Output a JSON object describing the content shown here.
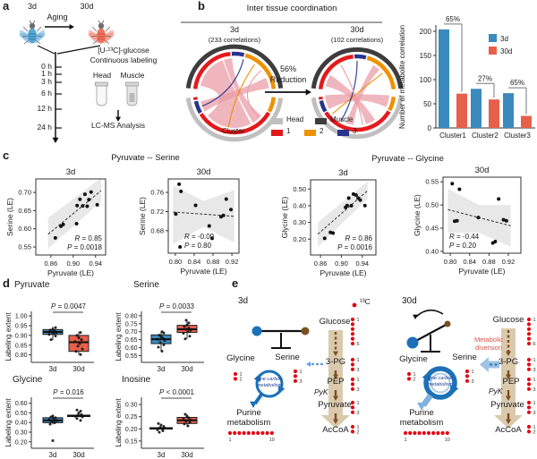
{
  "panel_labels": {
    "a": "a",
    "b": "b",
    "c": "c",
    "d": "d",
    "e": "e"
  },
  "colors": {
    "blue": "#3b8abd",
    "red": "#e7604b",
    "chord_red": "#e31a1c",
    "chord_orange": "#ef9100",
    "chord_navy": "#27348b",
    "head_gray": "#c0c0c0",
    "muscle_dark": "#3d3d3d",
    "ribbon_pink": "#ea9aa5",
    "tan": "#d9c6aa",
    "brown": "#7b4f21",
    "onecarbon_blue": "#1d71b8",
    "lightblue": "#9dc3e6",
    "dot_red": "#e30613",
    "diversion_red": "#d9544a",
    "fly_blue": "#58a8d4",
    "fly_blue_dark": "#2f7ca8",
    "fly_red": "#ef7561",
    "fly_red_dark": "#d04a38"
  },
  "panel_a": {
    "young_label": "3d",
    "aging_label": "Aging",
    "old_label": "30d",
    "timepoints": [
      "0 h",
      "1 h",
      "3 h",
      "6 h",
      "12 h",
      "24 h"
    ],
    "labeling_line1": "[U-¹³C]-glucose",
    "labeling_line2": "Continuous labeling",
    "tissue_head": "Head",
    "tissue_muscle": "Muscle",
    "analysis": "LC-MS Analysis"
  },
  "panel_b": {
    "title": "Inter tissue coordination",
    "chord_3d_title": "3d",
    "chord_3d_sub": "(233 correlations)",
    "chord_30d_title": "30d",
    "chord_30d_sub": "(102 correlations)",
    "reduction_line1": "56%",
    "reduction_line2": "Reduction",
    "legend_head": "Head",
    "legend_muscle": "Muscle",
    "legend_cluster": "Cluster",
    "legend_c1": "1",
    "legend_c2": "2",
    "legend_c3": "3"
  },
  "panel_c": {
    "title_serine": "Pyruvate -- Serine",
    "title_glycine": "Pyruvate -- Glycine"
  },
  "panel_e": {
    "age_young": "3d",
    "age_old": "30d",
    "c13": "¹³C",
    "glycine": "Glycine",
    "serine": "Serine",
    "one_carbon_1": "One carbon",
    "one_carbon_2": "metabolism",
    "purine_1": "Purine",
    "purine_2": "metabolism",
    "diversion_1": "Metabolic",
    "diversion_2": "diversion",
    "pathway": {
      "glucose": "Glucose",
      "pg": "3-PG",
      "pep": "PEP",
      "pyk": "PyK",
      "pyruvate": "Pyruvate",
      "accoa": "AcCoA"
    },
    "dots": {
      "glucose": {
        "n": 6,
        "labels": [
          "1",
          "6"
        ]
      },
      "pg": {
        "n": 3,
        "labels": [
          "1",
          "3"
        ]
      },
      "pep": {
        "n": 3,
        "labels": [
          "1",
          "3"
        ]
      },
      "pyruvate": {
        "n": 3,
        "labels": [
          "1",
          "3"
        ]
      },
      "accoa": {
        "n": 2,
        "labels": [
          "1",
          "2"
        ]
      },
      "serine": {
        "n": 3,
        "labels": [
          "1",
          "3"
        ]
      },
      "glycine": {
        "n": 2,
        "labels": [
          "1",
          "2"
        ]
      },
      "purine": {
        "n": 10,
        "labels": [
          "1",
          "10"
        ]
      }
    }
  },
  "chart_data": [
    {
      "id": "correlations",
      "type": "bar",
      "ylabel": "Number of metabolite correlation",
      "yticks": [
        0,
        50,
        100,
        150,
        200
      ],
      "ytick_labels": [
        "0",
        "50",
        "100",
        "150",
        "200"
      ],
      "ylim": [
        0,
        220
      ],
      "categories": [
        "Cluster1",
        "Cluster2",
        "Cluster3"
      ],
      "series": [
        {
          "name": "3d",
          "color": "#3b8abd",
          "values": [
            204,
            81,
            72
          ]
        },
        {
          "name": "30d",
          "color": "#e7604b",
          "values": [
            71,
            59,
            25
          ]
        }
      ],
      "annotations": [
        "65%",
        "27%",
        "65%"
      ],
      "legend_position": "top-right"
    },
    {
      "id": "serine_3d",
      "type": "scatter",
      "title": "3d",
      "xlabel": "Pyruvate (LE)",
      "ylabel": "Serine (LE)",
      "xdomain": [
        0.833,
        0.958
      ],
      "xticks": [
        0.86,
        0.9,
        0.94
      ],
      "xtick_labels": [
        "0.86",
        "0.90",
        "0.94"
      ],
      "ydomain": [
        0.528,
        0.737
      ],
      "yticks": [
        0.55,
        0.6,
        0.65,
        0.7
      ],
      "ytick_labels": [
        "0.55",
        "0.60",
        "0.65",
        "0.70"
      ],
      "r_label": "R = 0.85",
      "p_label": "P = 0.0018",
      "ann_pos": "br",
      "trend": [
        [
          0.855,
          0.585
        ],
        [
          0.95,
          0.705
        ]
      ],
      "band": [
        [
          0.855,
          0.63
        ],
        [
          0.95,
          0.74
        ],
        [
          0.95,
          0.675
        ],
        [
          0.855,
          0.545
        ]
      ],
      "points": [
        [
          0.868,
          0.575
        ],
        [
          0.878,
          0.607
        ],
        [
          0.882,
          0.612
        ],
        [
          0.906,
          0.614
        ],
        [
          0.907,
          0.664
        ],
        [
          0.912,
          0.681
        ],
        [
          0.917,
          0.663
        ],
        [
          0.921,
          0.695
        ],
        [
          0.925,
          0.662
        ],
        [
          0.928,
          0.68
        ],
        [
          0.932,
          0.701
        ],
        [
          0.943,
          0.666
        ]
      ]
    },
    {
      "id": "serine_30d",
      "type": "scatter",
      "title": "30d",
      "xlabel": "Pyruvate (LE)",
      "ylabel": "Serine (LE)",
      "xdomain": [
        0.785,
        0.935
      ],
      "xticks": [
        0.8,
        0.84,
        0.88,
        0.92
      ],
      "xtick_labels": [
        "0.80",
        "0.84",
        "0.88",
        "0.92"
      ],
      "ydomain": [
        0.633,
        0.788
      ],
      "yticks": [
        0.68,
        0.72,
        0.76
      ],
      "ytick_labels": [
        "0.68",
        "0.72",
        "0.76"
      ],
      "r_label": "R = -0.09",
      "p_label": "P = 0.80",
      "ann_pos": "bl",
      "trend": [
        [
          0.795,
          0.719
        ],
        [
          0.925,
          0.71
        ]
      ],
      "band": [
        [
          0.795,
          0.775
        ],
        [
          0.86,
          0.742
        ],
        [
          0.925,
          0.765
        ],
        [
          0.925,
          0.655
        ],
        [
          0.86,
          0.688
        ],
        [
          0.795,
          0.652
        ]
      ],
      "points": [
        [
          0.801,
          0.715
        ],
        [
          0.808,
          0.777
        ],
        [
          0.812,
          0.762
        ],
        [
          0.81,
          0.646
        ],
        [
          0.843,
          0.733
        ],
        [
          0.872,
          0.69
        ],
        [
          0.878,
          0.664
        ],
        [
          0.897,
          0.709
        ],
        [
          0.902,
          0.712
        ],
        [
          0.908,
          0.746
        ],
        [
          0.918,
          0.724
        ]
      ]
    },
    {
      "id": "glycine_3d",
      "type": "scatter",
      "title": "3d",
      "xlabel": "Pyruvate (LE)",
      "ylabel": "Glycine (LE)",
      "xdomain": [
        0.841,
        0.966
      ],
      "xticks": [
        0.86,
        0.9,
        0.94
      ],
      "xtick_labels": [
        "0.86",
        "0.90",
        "0.94"
      ],
      "ydomain": [
        0.105,
        0.555
      ],
      "yticks": [
        0.2,
        0.3,
        0.4,
        0.5
      ],
      "ytick_labels": [
        "0.20",
        "0.30",
        "0.40",
        "0.50"
      ],
      "r_label": "R = 0.86",
      "p_label": "P = 0.0016",
      "ann_pos": "br",
      "trend": [
        [
          0.855,
          0.23
        ],
        [
          0.95,
          0.49
        ]
      ],
      "band": [
        [
          0.855,
          0.3
        ],
        [
          0.95,
          0.545
        ],
        [
          0.95,
          0.44
        ],
        [
          0.855,
          0.155
        ]
      ],
      "points": [
        [
          0.868,
          0.205
        ],
        [
          0.879,
          0.24
        ],
        [
          0.884,
          0.236
        ],
        [
          0.908,
          0.39
        ],
        [
          0.911,
          0.401
        ],
        [
          0.914,
          0.446
        ],
        [
          0.919,
          0.4
        ],
        [
          0.923,
          0.47
        ],
        [
          0.928,
          0.464
        ],
        [
          0.932,
          0.446
        ],
        [
          0.936,
          0.434
        ],
        [
          0.945,
          0.401
        ]
      ]
    },
    {
      "id": "glycine_30d",
      "type": "scatter",
      "title": "30d",
      "xlabel": "Pyruvate (LE)",
      "ylabel": "Glycine (LE)",
      "xdomain": [
        0.785,
        0.946
      ],
      "xticks": [
        0.8,
        0.84,
        0.88,
        0.92
      ],
      "xtick_labels": [
        "0.80",
        "0.84",
        "0.88",
        "0.92"
      ],
      "ydomain": [
        0.396,
        0.56
      ],
      "yticks": [
        0.4,
        0.45,
        0.5,
        0.55
      ],
      "ytick_labels": [
        "0.40",
        "0.45",
        "0.50",
        "0.55"
      ],
      "r_label": "R = -0.44",
      "p_label": "P = 0.20",
      "ann_pos": "bl",
      "trend": [
        [
          0.795,
          0.49
        ],
        [
          0.925,
          0.455
        ]
      ],
      "band": [
        [
          0.795,
          0.535
        ],
        [
          0.86,
          0.5
        ],
        [
          0.925,
          0.5
        ],
        [
          0.925,
          0.41
        ],
        [
          0.86,
          0.44
        ],
        [
          0.795,
          0.44
        ]
      ],
      "points": [
        [
          0.804,
          0.546
        ],
        [
          0.809,
          0.465
        ],
        [
          0.814,
          0.466
        ],
        [
          0.819,
          0.534
        ],
        [
          0.858,
          0.473
        ],
        [
          0.888,
          0.418
        ],
        [
          0.893,
          0.421
        ],
        [
          0.9,
          0.513
        ],
        [
          0.91,
          0.468
        ],
        [
          0.916,
          0.466
        ]
      ]
    },
    {
      "id": "pyruvate_box",
      "type": "box",
      "title": "Pyruvate",
      "p_label": "P = 0.0047",
      "ylabel": "Labeling extent",
      "categories": [
        "3d",
        "30d"
      ],
      "ydomain": [
        0.78,
        1.005
      ],
      "yticks": [
        0.8,
        0.85,
        0.9,
        0.95,
        1.0
      ],
      "ytick_labels": [
        "0.80",
        "0.85",
        "0.90",
        "0.95",
        "1.00"
      ],
      "groups": [
        {
          "name": "3d",
          "color": "#3b8abd",
          "box": {
            "lo": 0.875,
            "q1": 0.905,
            "med": 0.918,
            "q3": 0.93,
            "hi": 0.945
          },
          "points": [
            [
              -2,
              0.878
            ],
            [
              3,
              0.897
            ],
            [
              -4,
              0.905
            ],
            [
              1,
              0.91
            ],
            [
              4,
              0.915
            ],
            [
              -1,
              0.918
            ],
            [
              2,
              0.922
            ],
            [
              -3,
              0.927
            ],
            [
              0,
              0.932
            ],
            [
              3,
              0.94
            ]
          ]
        },
        {
          "name": "30d",
          "color": "#e7604b",
          "box": {
            "lo": 0.8,
            "q1": 0.818,
            "med": 0.865,
            "q3": 0.9,
            "hi": 0.92
          },
          "points": [
            [
              2,
              0.802
            ],
            [
              -3,
              0.818
            ],
            [
              4,
              0.83
            ],
            [
              -1,
              0.845
            ],
            [
              1,
              0.858
            ],
            [
              -4,
              0.868
            ],
            [
              3,
              0.878
            ],
            [
              0,
              0.888
            ],
            [
              -2,
              0.9
            ],
            [
              2,
              0.915
            ]
          ]
        }
      ]
    },
    {
      "id": "serine_box",
      "type": "box",
      "title": "Serine",
      "p_label": "P = 0.0033",
      "ylabel": "Labeling extent",
      "categories": [
        "3d",
        "30d"
      ],
      "ydomain": [
        0.53,
        0.805
      ],
      "yticks": [
        0.55,
        0.6,
        0.65,
        0.7,
        0.75,
        0.8
      ],
      "ytick_labels": [
        "0.55",
        "0.60",
        "0.65",
        "0.70",
        "0.75",
        "0.80"
      ],
      "groups": [
        {
          "name": "3d",
          "color": "#3b8abd",
          "box": {
            "lo": 0.575,
            "q1": 0.625,
            "med": 0.653,
            "q3": 0.68,
            "hi": 0.7
          },
          "points": [
            [
              1,
              0.578
            ],
            [
              -3,
              0.603
            ],
            [
              3,
              0.618
            ],
            [
              -1,
              0.632
            ],
            [
              4,
              0.645
            ],
            [
              -4,
              0.652
            ],
            [
              2,
              0.66
            ],
            [
              0,
              0.668
            ],
            [
              -2,
              0.678
            ],
            [
              3,
              0.692
            ],
            [
              1,
              0.7
            ]
          ]
        },
        {
          "name": "30d",
          "color": "#e7604b",
          "box": {
            "lo": 0.655,
            "q1": 0.695,
            "med": 0.715,
            "q3": 0.74,
            "hi": 0.775
          },
          "points": [
            [
              -2,
              0.655
            ],
            [
              3,
              0.672
            ],
            [
              -4,
              0.69
            ],
            [
              1,
              0.7
            ],
            [
              4,
              0.708
            ],
            [
              -1,
              0.715
            ],
            [
              2,
              0.722
            ],
            [
              -3,
              0.732
            ],
            [
              0,
              0.742
            ],
            [
              2,
              0.755
            ],
            [
              -1,
              0.772
            ]
          ]
        }
      ]
    },
    {
      "id": "glycine_box",
      "type": "box",
      "title": "Glycine",
      "p_label": "P = 0.016",
      "ylabel": "Labeling extent",
      "categories": [
        "3d",
        "30d"
      ],
      "ydomain": [
        0.17,
        0.625
      ],
      "yticks": [
        0.2,
        0.3,
        0.4,
        0.5,
        0.6
      ],
      "ytick_labels": [
        "0.20",
        "0.30",
        "0.40",
        "0.50",
        "0.60"
      ],
      "groups": [
        {
          "name": "3d",
          "color": "#3b8abd",
          "box": {
            "lo": 0.38,
            "q1": 0.398,
            "med": 0.422,
            "q3": 0.45,
            "hi": 0.47
          },
          "points": [
            [
              0,
              0.212
            ],
            [
              -3,
              0.382
            ],
            [
              2,
              0.398
            ],
            [
              -1,
              0.41
            ],
            [
              4,
              0.42
            ],
            [
              -4,
              0.43
            ],
            [
              1,
              0.44
            ],
            [
              3,
              0.45
            ],
            [
              -2,
              0.458
            ],
            [
              0,
              0.468
            ]
          ]
        },
        {
          "name": "30d",
          "color": "#e7604b",
          "box": null,
          "median": 0.47,
          "points": [
            [
              2,
              0.422
            ],
            [
              -2,
              0.442
            ],
            [
              4,
              0.458
            ],
            [
              -4,
              0.465
            ],
            [
              1,
              0.47
            ],
            [
              -1,
              0.475
            ],
            [
              3,
              0.482
            ],
            [
              0,
              0.5
            ],
            [
              2,
              0.518
            ],
            [
              -2,
              0.53
            ]
          ]
        }
      ]
    },
    {
      "id": "inosine_box",
      "type": "box",
      "title": "Inosine",
      "p_label": "P < 0.0001",
      "ylabel": "Labeling extent",
      "categories": [
        "3d",
        "30d"
      ],
      "ydomain": [
        0.135,
        0.315
      ],
      "yticks": [
        0.15,
        0.2,
        0.25,
        0.3
      ],
      "ytick_labels": [
        "0.15",
        "0.20",
        "0.25",
        "0.30"
      ],
      "groups": [
        {
          "name": "3d",
          "color": "#3b8abd",
          "box": null,
          "median": 0.202,
          "points": [
            [
              -2,
              0.186
            ],
            [
              2,
              0.192
            ],
            [
              -4,
              0.196
            ],
            [
              1,
              0.2
            ],
            [
              4,
              0.203
            ],
            [
              -1,
              0.206
            ],
            [
              3,
              0.21
            ],
            [
              0,
              0.216
            ],
            [
              -3,
              0.222
            ]
          ]
        },
        {
          "name": "30d",
          "color": "#e7604b",
          "box": {
            "lo": 0.21,
            "q1": 0.222,
            "med": 0.235,
            "q3": 0.247,
            "hi": 0.26
          },
          "points": [
            [
              1,
              0.212
            ],
            [
              -3,
              0.22
            ],
            [
              3,
              0.226
            ],
            [
              -1,
              0.231
            ],
            [
              4,
              0.236
            ],
            [
              -4,
              0.24
            ],
            [
              2,
              0.245
            ],
            [
              0,
              0.251
            ],
            [
              -2,
              0.26
            ]
          ]
        }
      ]
    }
  ]
}
